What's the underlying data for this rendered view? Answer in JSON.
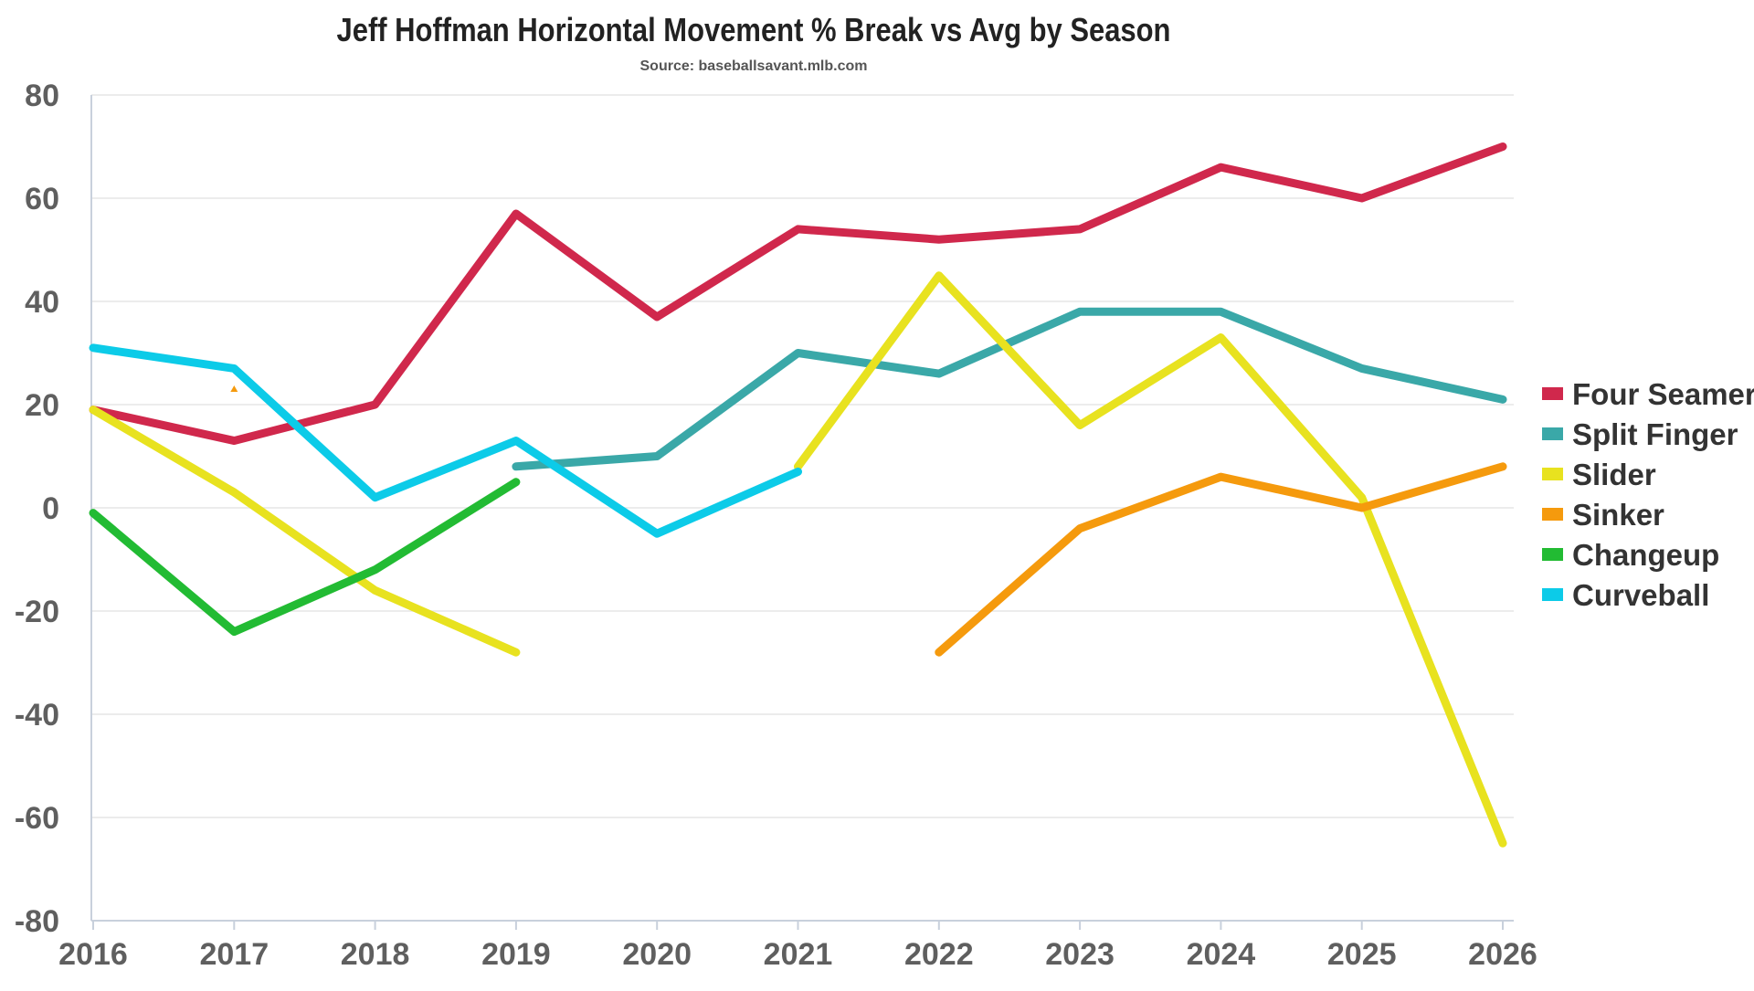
{
  "chart_data": {
    "type": "line",
    "title": "Jeff Hoffman Horizontal Movement % Break vs Avg by Season",
    "subtitle": "Source: baseballsavant.mlb.com",
    "xlabel": "",
    "ylabel": "",
    "ylim": [
      -80,
      80
    ],
    "yticks": [
      -80,
      -60,
      -40,
      -20,
      0,
      20,
      40,
      60,
      80
    ],
    "x": [
      "2016",
      "2017",
      "2018",
      "2019",
      "2020",
      "2021",
      "2022",
      "2023",
      "2024",
      "2025",
      "2026"
    ],
    "grid": true,
    "legend_position": "right",
    "series": [
      {
        "name": "Four Seamer",
        "color": "#d0284c",
        "values": [
          19,
          13,
          20,
          57,
          37,
          54,
          52,
          54,
          66,
          60,
          70
        ]
      },
      {
        "name": "Split Finger",
        "color": "#3aa8a8",
        "values": [
          null,
          null,
          null,
          8,
          10,
          30,
          26,
          38,
          38,
          27,
          21
        ]
      },
      {
        "name": "Slider",
        "color": "#e8e21f",
        "values": [
          19,
          3,
          -16,
          -28,
          null,
          8,
          45,
          16,
          33,
          2,
          -65
        ]
      },
      {
        "name": "Sinker",
        "color": "#f59a0d",
        "values": [
          null,
          23,
          null,
          null,
          null,
          null,
          -28,
          -4,
          6,
          0,
          8
        ]
      },
      {
        "name": "Changeup",
        "color": "#22bb33",
        "values": [
          -1,
          -24,
          -12,
          5,
          null,
          null,
          null,
          null,
          null,
          null,
          null
        ]
      },
      {
        "name": "Curveball",
        "color": "#0ccbe8",
        "values": [
          31,
          27,
          2,
          13,
          -5,
          7,
          null,
          null,
          null,
          null,
          null
        ]
      }
    ]
  }
}
